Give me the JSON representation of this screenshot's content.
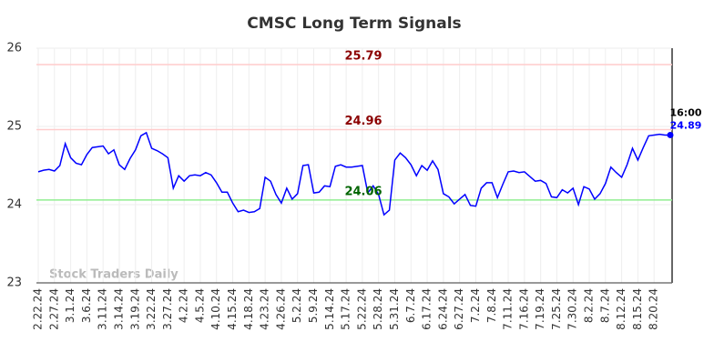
{
  "chart_data": {
    "type": "line",
    "title": "CMSC Long Term Signals",
    "watermark": "Stock Traders Daily",
    "categories": [
      "2.22.24",
      null,
      null,
      "2.27.24",
      null,
      null,
      "3.1.24",
      null,
      null,
      "3.6.24",
      null,
      null,
      "3.11.24",
      null,
      null,
      "3.14.24",
      null,
      null,
      "3.19.24",
      null,
      null,
      "3.22.24",
      null,
      null,
      "3.27.24",
      null,
      null,
      "4.2.24",
      null,
      null,
      "4.5.24",
      null,
      null,
      "4.10.24",
      null,
      null,
      "4.15.24",
      null,
      null,
      "4.18.24",
      null,
      null,
      "4.23.24",
      null,
      null,
      "4.26.24",
      null,
      null,
      "5.2.24",
      null,
      null,
      "5.9.24",
      null,
      null,
      "5.14.24",
      null,
      null,
      "5.17.24",
      null,
      null,
      "5.22.24",
      null,
      null,
      "5.28.24",
      null,
      null,
      "5.31.24",
      null,
      null,
      "6.7.24",
      null,
      null,
      "6.17.24",
      null,
      null,
      "6.24.24",
      null,
      null,
      "6.27.24",
      null,
      null,
      "7.2.24",
      null,
      null,
      "7.8.24",
      null,
      null,
      "7.11.24",
      null,
      null,
      "7.16.24",
      null,
      null,
      "7.19.24",
      null,
      null,
      "7.25.24",
      null,
      null,
      "7.30.24",
      null,
      null,
      "8.2.24",
      null,
      null,
      "8.7.24",
      null,
      null,
      "8.12.24",
      null,
      null,
      "8.15.24",
      null,
      null,
      "8.20.24",
      null,
      null,
      null
    ],
    "series": [
      {
        "color": "#0000ff",
        "values": [
          24.42,
          24.44,
          24.45,
          24.43,
          24.5,
          24.78,
          24.6,
          24.53,
          24.51,
          24.64,
          24.73,
          24.74,
          24.75,
          24.65,
          24.7,
          24.51,
          24.45,
          24.59,
          24.7,
          24.88,
          24.92,
          24.72,
          24.69,
          24.65,
          24.6,
          24.21,
          24.37,
          24.3,
          24.37,
          24.38,
          24.37,
          24.41,
          24.38,
          24.28,
          24.16,
          24.16,
          24.02,
          23.91,
          23.93,
          23.9,
          23.91,
          23.95,
          24.35,
          24.3,
          24.13,
          24.02,
          24.21,
          24.07,
          24.14,
          24.5,
          24.51,
          24.15,
          24.16,
          24.24,
          24.23,
          24.49,
          24.51,
          24.48,
          24.48,
          24.49,
          24.5,
          24.15,
          24.24,
          24.13,
          23.87,
          23.93,
          24.57,
          24.66,
          24.6,
          24.51,
          24.37,
          24.5,
          24.44,
          24.56,
          24.45,
          24.14,
          24.1,
          24.01,
          24.07,
          24.13,
          23.99,
          23.98,
          24.21,
          24.28,
          24.28,
          24.09,
          24.26,
          24.42,
          24.43,
          24.41,
          24.42,
          24.36,
          24.3,
          24.31,
          24.27,
          24.1,
          24.09,
          24.19,
          24.15,
          24.21,
          24.0,
          24.23,
          24.2,
          24.07,
          24.14,
          24.27,
          24.48,
          24.41,
          24.35,
          24.51,
          24.72,
          24.57,
          24.73,
          24.88,
          24.89,
          24.9,
          24.89,
          24.89
        ]
      }
    ],
    "last_time_label": "16:00",
    "hlines": [
      {
        "value": 25.79,
        "color": "#ffcccc",
        "label_color": "#8b0000"
      },
      {
        "value": 24.96,
        "color": "#ffcccc",
        "label_color": "#8b0000"
      },
      {
        "value": 24.06,
        "color": "#90ee90",
        "label_color": "#006400"
      }
    ],
    "ylim": [
      23,
      26
    ],
    "yticks": [
      23,
      24,
      25,
      26
    ],
    "grid": true
  }
}
